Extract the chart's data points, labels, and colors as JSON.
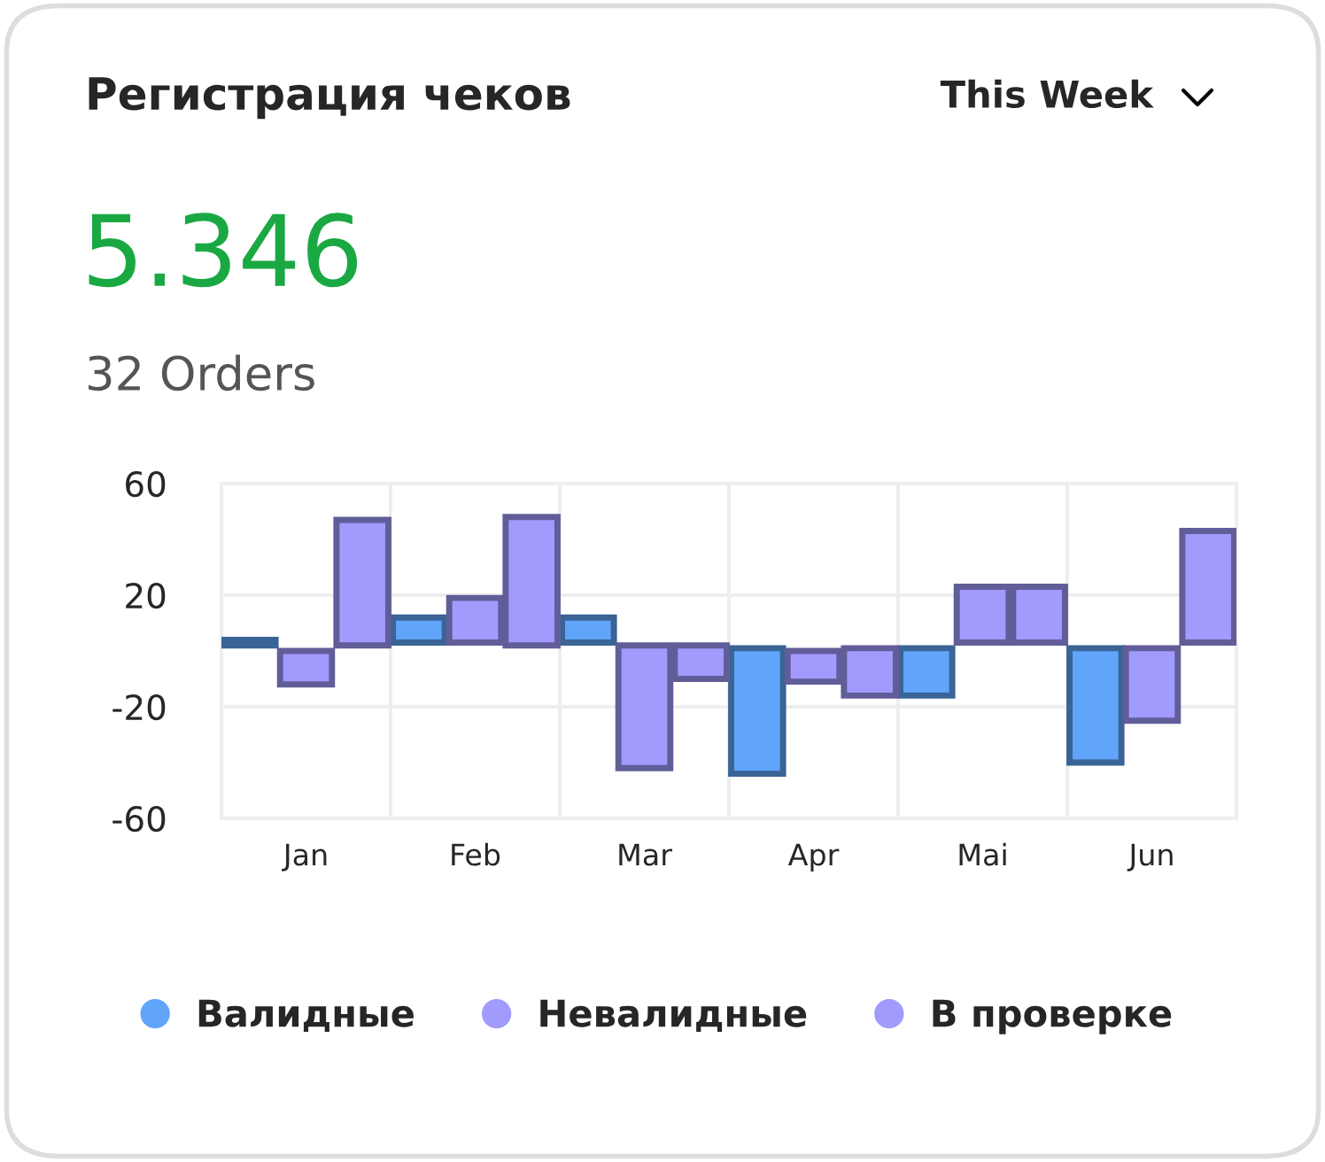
{
  "chart_data": {
    "type": "bar",
    "title": "Регистрация чеков",
    "annotations": [
      "This Week",
      "5.346",
      "32 Orders"
    ],
    "categories": [
      "Jan",
      "Feb",
      "Mar",
      "Apr",
      "Mai",
      "Jun"
    ],
    "series": [
      {
        "name": "Валидные",
        "color": "#60a5fa",
        "base": [
          2,
          3,
          3,
          -44,
          -16,
          -40
        ],
        "values": [
          2,
          9,
          9,
          45,
          17,
          41
        ]
      },
      {
        "name": "Невалидные",
        "color": "#a29bfe",
        "base": [
          -12,
          3,
          -42,
          -11,
          3,
          -25
        ],
        "values": [
          12,
          16,
          44,
          11,
          20,
          26
        ]
      },
      {
        "name": "В проверке",
        "color": "#a29bfe",
        "base": [
          2,
          2,
          -10,
          -16,
          3,
          3
        ],
        "values": [
          45,
          46,
          12,
          17,
          20,
          40
        ]
      }
    ],
    "ylim": [
      -60,
      60
    ],
    "yticks": [
      60,
      20,
      -20,
      -60
    ],
    "grid": true,
    "legend": "bottom"
  }
}
